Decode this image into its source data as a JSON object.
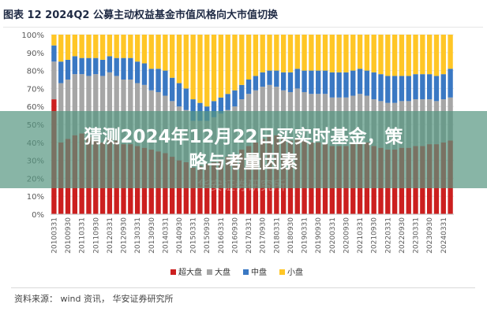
{
  "chart_title": "图表 12 2024Q2 公募主动权益基金市值风格向大市值切换",
  "headline_line1": "猜测2024年12月22日买实时基金，策",
  "headline_line2": "略与考量因素",
  "source": "资料来源：  wind 资讯，  华安证券研究所",
  "watermark": "华安证券研究所",
  "colors": {
    "super_large": "#cc1f1f",
    "large": "#a6a6a6",
    "mid": "#3a78c3",
    "small": "#ffc626",
    "overlay": "#5a9a84"
  },
  "chart_data": {
    "type": "bar",
    "stacked": true,
    "title": "图表 12 2024Q2 公募主动权益基金市值风格向大市值切换",
    "ylim": [
      0,
      100
    ],
    "yticks": [
      "0%",
      "10%",
      "20%",
      "30%",
      "40%",
      "50%",
      "60%",
      "70%",
      "80%",
      "90%",
      "100%"
    ],
    "legend_position": "bottom",
    "categories": [
      "20100331",
      "20100630",
      "20100930",
      "20101231",
      "20110331",
      "20110630",
      "20110930",
      "20111231",
      "20120331",
      "20120630",
      "20120930",
      "20121231",
      "20130331",
      "20130630",
      "20130930",
      "20131231",
      "20140331",
      "20140630",
      "20140930",
      "20141231",
      "20150331",
      "20150630",
      "20150930",
      "20151231",
      "20160331",
      "20160630",
      "20160930",
      "20161231",
      "20170331",
      "20170630",
      "20170930",
      "20171231",
      "20180331",
      "20180630",
      "20180930",
      "20181231",
      "20190331",
      "20190630",
      "20190930",
      "20191231",
      "20200331",
      "20200630",
      "20200930",
      "20201231",
      "20210331",
      "20210630",
      "20210930",
      "20211231",
      "20220331",
      "20220630",
      "20220930",
      "20221231",
      "20230331",
      "20230630",
      "20230930",
      "20231231",
      "20240331",
      "20240630"
    ],
    "xtick_labels": [
      "20100331",
      "20100930",
      "20110331",
      "20110930",
      "20120331",
      "20120930",
      "20130331",
      "20130930",
      "20140331",
      "20140930",
      "20150331",
      "20150930",
      "20160331",
      "20160930",
      "20170331",
      "20170930",
      "20180331",
      "20180930",
      "20190331",
      "20190930",
      "20200331",
      "20200930",
      "20210331",
      "20210930",
      "20220331",
      "20220930",
      "20230331",
      "20230930",
      "20240331"
    ],
    "series": [
      {
        "name": "超大盘",
        "color": "#cc1f1f",
        "values": [
          64,
          40,
          42,
          44,
          45,
          43,
          41,
          40,
          42,
          41,
          39,
          39,
          38,
          37,
          36,
          35,
          34,
          32,
          30,
          29,
          26,
          27,
          28,
          29,
          30,
          32,
          33,
          36,
          38,
          40,
          42,
          44,
          44,
          42,
          41,
          42,
          41,
          40,
          40,
          39,
          38,
          38,
          38,
          39,
          40,
          40,
          38,
          37,
          36,
          36,
          37,
          37,
          38,
          38,
          39,
          39,
          40,
          41
        ]
      },
      {
        "name": "大盘",
        "color": "#a6a6a6",
        "values": [
          21,
          33,
          33,
          34,
          33,
          34,
          37,
          37,
          37,
          36,
          36,
          36,
          35,
          35,
          33,
          33,
          32,
          31,
          30,
          29,
          26,
          25,
          24,
          25,
          26,
          26,
          27,
          28,
          29,
          29,
          29,
          28,
          27,
          27,
          27,
          28,
          27,
          27,
          27,
          28,
          27,
          27,
          27,
          27,
          27,
          26,
          26,
          26,
          26,
          26,
          26,
          26,
          26,
          26,
          25,
          24,
          24,
          24
        ]
      },
      {
        "name": "中盘",
        "color": "#3a78c3",
        "values": [
          9,
          12,
          11,
          10,
          9,
          10,
          9,
          9,
          9,
          10,
          12,
          12,
          12,
          12,
          12,
          13,
          14,
          13,
          13,
          12,
          12,
          10,
          8,
          9,
          9,
          9,
          9,
          8,
          8,
          8,
          8,
          8,
          9,
          10,
          11,
          11,
          12,
          13,
          13,
          13,
          14,
          14,
          14,
          14,
          14,
          14,
          15,
          15,
          15,
          15,
          14,
          14,
          14,
          14,
          14,
          14,
          14,
          16
        ]
      },
      {
        "name": "小盘",
        "color": "#ffc626",
        "values": [
          6,
          15,
          14,
          12,
          13,
          13,
          13,
          14,
          12,
          13,
          13,
          13,
          15,
          16,
          19,
          19,
          20,
          24,
          27,
          30,
          36,
          38,
          40,
          37,
          35,
          33,
          31,
          28,
          25,
          23,
          21,
          20,
          20,
          21,
          21,
          19,
          20,
          20,
          20,
          20,
          21,
          21,
          21,
          20,
          19,
          20,
          21,
          22,
          23,
          23,
          23,
          23,
          22,
          22,
          22,
          23,
          22,
          19
        ]
      }
    ]
  }
}
